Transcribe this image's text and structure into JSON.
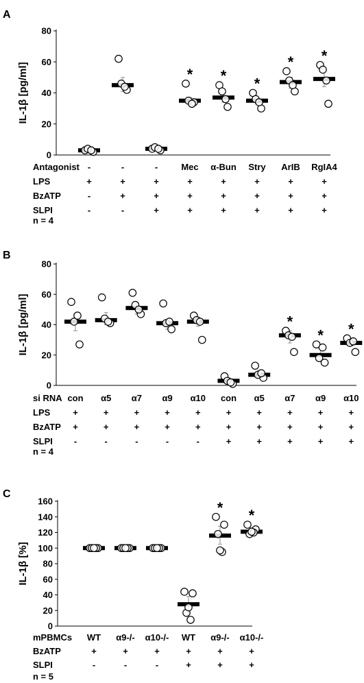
{
  "figure": {
    "panels": [
      {
        "letter": "A",
        "n_label": "n = 4"
      },
      {
        "letter": "B",
        "n_label": "n = 4"
      },
      {
        "letter": "C",
        "n_label": "n = 5"
      }
    ],
    "colors": {
      "median_bar": "#000000",
      "point_fill": "#ffffff",
      "point_stroke": "#000000",
      "error_bar": "#a0a0a0",
      "axis": "#000000"
    }
  },
  "chart_data": [
    {
      "type": "scatter",
      "panel": "A",
      "title": "",
      "ylabel": "IL-1β [pg/ml]",
      "ylim": [
        0,
        80
      ],
      "yticks": [
        0,
        20,
        40,
        60,
        80
      ],
      "grid": false,
      "categories": [
        "1",
        "2",
        "3",
        "4",
        "5",
        "6",
        "7",
        "8"
      ],
      "condition_rows": [
        {
          "label": "Antagonist",
          "values": [
            "-",
            "-",
            "-",
            "Mec",
            "α-Bun",
            "Stry",
            "ArIB",
            "RgIA4"
          ]
        },
        {
          "label": "LPS",
          "values": [
            "+",
            "+",
            "+",
            "+",
            "+",
            "+",
            "+",
            "+"
          ]
        },
        {
          "label": "BzATP",
          "values": [
            "-",
            "+",
            "+",
            "+",
            "+",
            "+",
            "+",
            "+"
          ]
        },
        {
          "label": "SLPI",
          "values": [
            "-",
            "-",
            "+",
            "+",
            "+",
            "+",
            "+",
            "+"
          ]
        }
      ],
      "medians": [
        3,
        45,
        4,
        35,
        37,
        35,
        47,
        49
      ],
      "error": [
        [
          2,
          4
        ],
        [
          41,
          50
        ],
        [
          3,
          5
        ],
        [
          33,
          37
        ],
        [
          34,
          40
        ],
        [
          33,
          37
        ],
        [
          43,
          50
        ],
        [
          44,
          55
        ]
      ],
      "points": [
        [
          3,
          2,
          4,
          3
        ],
        [
          62,
          42,
          46,
          44
        ],
        [
          4,
          3,
          5,
          4
        ],
        [
          46,
          34,
          35,
          33
        ],
        [
          45,
          31,
          41,
          36
        ],
        [
          40,
          30,
          36,
          34
        ],
        [
          54,
          41,
          48,
          45
        ],
        [
          58,
          33,
          55,
          48
        ]
      ],
      "significance": [
        "",
        "",
        "",
        "*",
        "*",
        "*",
        "*",
        "*"
      ]
    },
    {
      "type": "scatter",
      "panel": "B",
      "title": "",
      "ylabel": "IL-1β [pg/ml]",
      "ylim": [
        0,
        80
      ],
      "yticks": [
        0,
        20,
        40,
        60,
        80
      ],
      "grid": false,
      "categories": [
        "1",
        "2",
        "3",
        "4",
        "5",
        "6",
        "7",
        "8",
        "9",
        "10"
      ],
      "condition_rows": [
        {
          "label": "si RNA",
          "values": [
            "con",
            "α5",
            "α7",
            "α9",
            "α10",
            "con",
            "α5",
            "α7",
            "α9",
            "α10"
          ]
        },
        {
          "label": "LPS",
          "values": [
            "+",
            "+",
            "+",
            "+",
            "+",
            "+",
            "+",
            "+",
            "+",
            "+"
          ]
        },
        {
          "label": "BzATP",
          "values": [
            "+",
            "+",
            "+",
            "+",
            "+",
            "+",
            "+",
            "+",
            "+",
            "+"
          ]
        },
        {
          "label": "SLPI",
          "values": [
            "-",
            "-",
            "-",
            "-",
            "-",
            "+",
            "+",
            "+",
            "+",
            "+"
          ]
        }
      ],
      "medians": [
        42,
        43,
        51,
        41,
        42,
        3,
        7,
        33,
        20,
        28
      ],
      "error": [
        [
          36,
          47
        ],
        [
          40,
          48
        ],
        [
          47,
          54
        ],
        [
          37,
          43
        ],
        [
          39,
          45
        ],
        [
          1,
          5
        ],
        [
          5,
          10
        ],
        [
          28,
          36
        ],
        [
          17,
          24
        ],
        [
          26,
          31
        ]
      ],
      "points": [
        [
          55,
          27,
          42,
          46
        ],
        [
          58,
          41,
          44,
          42
        ],
        [
          61,
          47,
          53,
          50
        ],
        [
          54,
          37,
          41,
          42
        ],
        [
          46,
          30,
          43,
          42
        ],
        [
          6,
          1,
          3,
          2
        ],
        [
          13,
          5,
          7,
          8
        ],
        [
          36,
          22,
          33,
          32
        ],
        [
          27,
          15,
          18,
          25
        ],
        [
          31,
          22,
          28,
          29
        ]
      ],
      "significance": [
        "",
        "",
        "",
        "",
        "",
        "",
        "",
        "*",
        "*",
        "*"
      ]
    },
    {
      "type": "scatter",
      "panel": "C",
      "title": "",
      "ylabel": "IL-1β [%]",
      "ylim": [
        0,
        160
      ],
      "yticks": [
        0,
        20,
        40,
        60,
        80,
        100,
        120,
        140,
        160
      ],
      "grid": false,
      "categories": [
        "1",
        "2",
        "3",
        "4",
        "5",
        "6"
      ],
      "condition_rows": [
        {
          "label": "mPBMCs",
          "values": [
            "WT",
            "α9-/-",
            "α10-/-",
            "WT",
            "α9-/-",
            "α10-/-"
          ]
        },
        {
          "label": "BzATP",
          "values": [
            "+",
            "+",
            "+",
            "+",
            "+",
            "+"
          ]
        },
        {
          "label": "SLPI",
          "values": [
            "-",
            "-",
            "-",
            "+",
            "+",
            "+"
          ]
        }
      ],
      "medians": [
        100,
        100,
        100,
        28,
        116,
        121
      ],
      "error": [
        [
          99,
          101
        ],
        [
          99,
          101
        ],
        [
          99,
          101
        ],
        [
          17,
          38
        ],
        [
          105,
          128
        ],
        [
          116,
          126
        ]
      ],
      "points": [
        [
          100,
          100,
          100,
          100,
          100
        ],
        [
          100,
          100,
          100,
          100,
          100
        ],
        [
          100,
          100,
          100,
          100,
          100
        ],
        [
          44,
          42,
          17,
          8,
          24
        ],
        [
          140,
          130,
          118,
          95,
          97
        ],
        [
          130,
          124,
          118,
          120,
          121
        ]
      ],
      "significance": [
        "",
        "",
        "",
        "",
        "*",
        "*"
      ]
    }
  ]
}
